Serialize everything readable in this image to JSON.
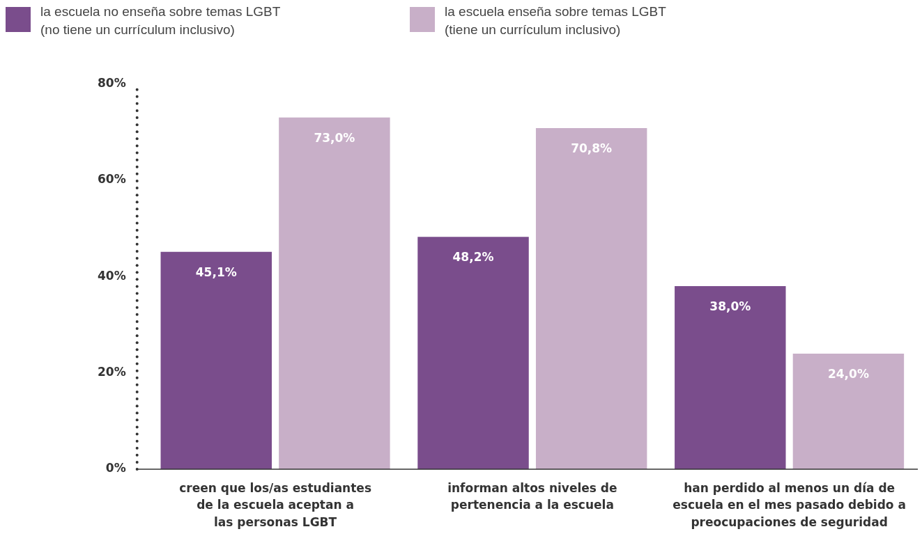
{
  "chart_data": {
    "type": "bar",
    "categories": [
      "creen que los/as estudiantes\nde la escuela aceptan a\nlas personas LGBT",
      "informan altos niveles de\npertenencia a la escuela",
      "han perdido al menos un día de\nescuela en el mes pasado debido a\npreocupaciones de seguridad"
    ],
    "series": [
      {
        "name": "la escuela no enseña sobre temas LGBT\n(no tiene un currículum inclusivo)",
        "color": "#7a4d8c",
        "values": [
          45.1,
          48.2,
          38.0
        ],
        "value_labels": [
          "45,1%",
          "48,2%",
          "38,0%"
        ]
      },
      {
        "name": "la escuela enseña sobre temas LGBT\n(tiene un currículum inclusivo)",
        "color": "#c8afc8",
        "values": [
          73.0,
          70.8,
          24.0
        ],
        "value_labels": [
          "73,0%",
          "70,8%",
          "24,0%"
        ]
      }
    ],
    "ylim": [
      0,
      80
    ],
    "yticks": [
      {
        "value": 0,
        "label": "0%"
      },
      {
        "value": 20,
        "label": "20%"
      },
      {
        "value": 40,
        "label": "40%"
      },
      {
        "value": 60,
        "label": "60%"
      },
      {
        "value": 80,
        "label": "80%"
      }
    ],
    "grid": false,
    "legend": "top left"
  }
}
